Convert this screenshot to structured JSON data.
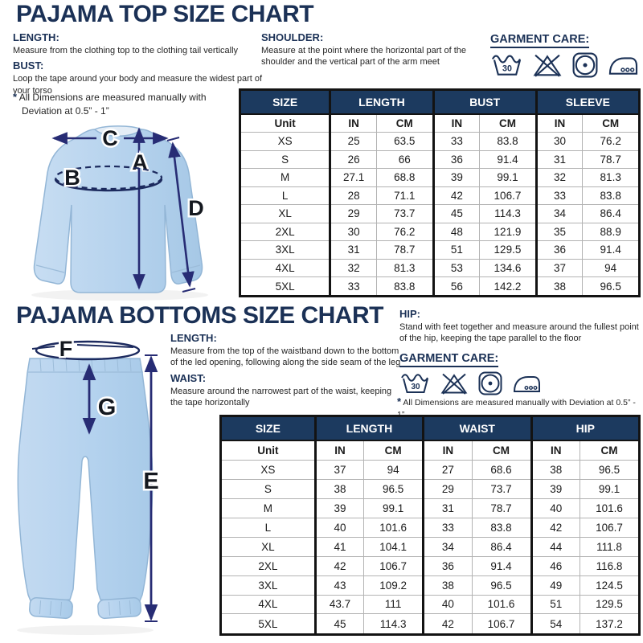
{
  "colors": {
    "navy": "#1b3156",
    "table_header_bg": "#1c3a5f",
    "garment_blue": "#b7d3ec",
    "arrow_indigo": "#272c74",
    "border_black": "#131313"
  },
  "top_section": {
    "title": "PAJAMA TOP SIZE CHART",
    "length": {
      "heading": "LENGTH:",
      "body": "Measure from the clothing top to the clothing tail vertically"
    },
    "bust": {
      "heading": "BUST:",
      "body": "Loop the tape around your body and measure the widest part of your torso"
    },
    "shoulder": {
      "heading": "SHOULDER:",
      "body": "Measure at the point where the horizontal part of the shoulder and the vertical part of the arm meet"
    },
    "note_star": "*",
    "note": "All Dimensions are measured manually with Deviation at 0.5” - 1”",
    "garment_care_label": "GARMENT CARE:",
    "care_icons": [
      "wash-30-icon",
      "do-not-bleach-icon",
      "tumble-dry-icon",
      "iron-icon"
    ],
    "wash_temp": "30",
    "diagram_labels": {
      "a": "A",
      "b": "B",
      "c": "C",
      "d": "D"
    },
    "table": {
      "group_headers": [
        "SIZE",
        "LENGTH",
        "BUST",
        "SLEEVE"
      ],
      "unit_row": [
        "Unit",
        "IN",
        "CM",
        "IN",
        "CM",
        "IN",
        "CM"
      ],
      "rows": [
        [
          "XS",
          "25",
          "63.5",
          "33",
          "83.8",
          "30",
          "76.2"
        ],
        [
          "S",
          "26",
          "66",
          "36",
          "91.4",
          "31",
          "78.7"
        ],
        [
          "M",
          "27.1",
          "68.8",
          "39",
          "99.1",
          "32",
          "81.3"
        ],
        [
          "L",
          "28",
          "71.1",
          "42",
          "106.7",
          "33",
          "83.8"
        ],
        [
          "XL",
          "29",
          "73.7",
          "45",
          "114.3",
          "34",
          "86.4"
        ],
        [
          "2XL",
          "30",
          "76.2",
          "48",
          "121.9",
          "35",
          "88.9"
        ],
        [
          "3XL",
          "31",
          "78.7",
          "51",
          "129.5",
          "36",
          "91.4"
        ],
        [
          "4XL",
          "32",
          "81.3",
          "53",
          "134.6",
          "37",
          "94"
        ],
        [
          "5XL",
          "33",
          "83.8",
          "56",
          "142.2",
          "38",
          "96.5"
        ]
      ]
    }
  },
  "bottom_section": {
    "title": "PAJAMA BOTTOMS SIZE CHART",
    "length": {
      "heading": "LENGTH:",
      "body": "Measure from the top of the waistband down to the bottom of the led opening, following along the side seam of the leg"
    },
    "waist": {
      "heading": "WAIST:",
      "body": "Measure around the narrowest part of the waist, keeping the tape horizontally"
    },
    "hip": {
      "heading": "HIP:",
      "body": "Stand with feet together and measure around the fullest point of the hip, keeping the tape parallel to the floor"
    },
    "note_star": "*",
    "note": "All Dimensions are measured manually with Deviation at 0.5” - 1”",
    "garment_care_label": "GARMENT CARE:",
    "care_icons": [
      "wash-30-icon",
      "do-not-bleach-icon",
      "tumble-dry-icon",
      "iron-icon"
    ],
    "wash_temp": "30",
    "diagram_labels": {
      "e": "E",
      "f": "F",
      "g": "G"
    },
    "table": {
      "group_headers": [
        "SIZE",
        "LENGTH",
        "WAIST",
        "HIP"
      ],
      "unit_row": [
        "Unit",
        "IN",
        "CM",
        "IN",
        "CM",
        "IN",
        "CM"
      ],
      "rows": [
        [
          "XS",
          "37",
          "94",
          "27",
          "68.6",
          "38",
          "96.5"
        ],
        [
          "S",
          "38",
          "96.5",
          "29",
          "73.7",
          "39",
          "99.1"
        ],
        [
          "M",
          "39",
          "99.1",
          "31",
          "78.7",
          "40",
          "101.6"
        ],
        [
          "L",
          "40",
          "101.6",
          "33",
          "83.8",
          "42",
          "106.7"
        ],
        [
          "XL",
          "41",
          "104.1",
          "34",
          "86.4",
          "44",
          "111.8"
        ],
        [
          "2XL",
          "42",
          "106.7",
          "36",
          "91.4",
          "46",
          "116.8"
        ],
        [
          "3XL",
          "43",
          "109.2",
          "38",
          "96.5",
          "49",
          "124.5"
        ],
        [
          "4XL",
          "43.7",
          "111",
          "40",
          "101.6",
          "51",
          "129.5"
        ],
        [
          "5XL",
          "45",
          "114.3",
          "42",
          "106.7",
          "54",
          "137.2"
        ]
      ]
    }
  }
}
